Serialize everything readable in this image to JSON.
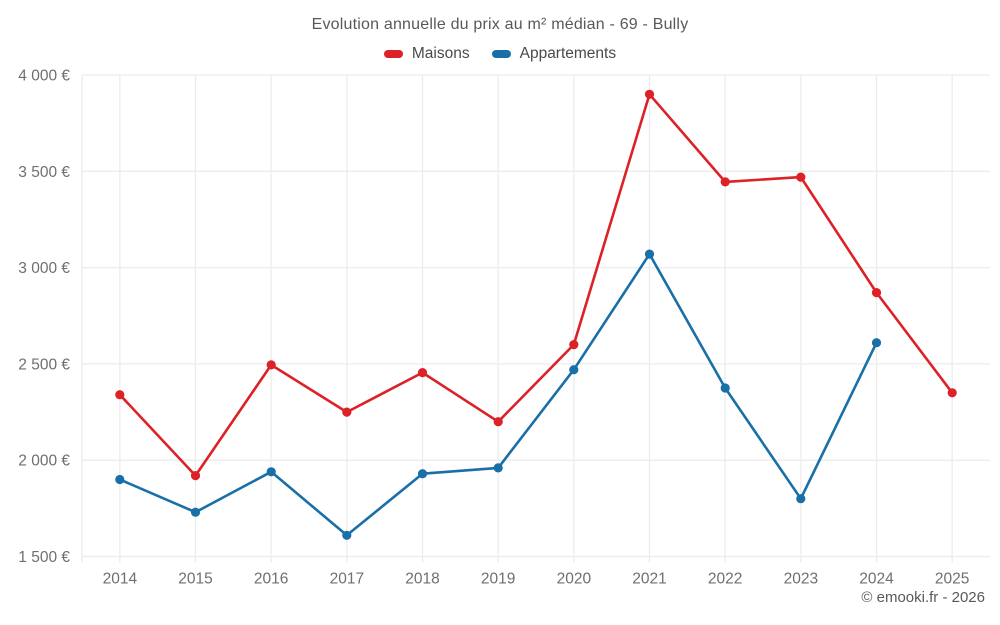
{
  "title": "Evolution annuelle du prix au m² médian - 69 - Bully",
  "footer": "© emooki.fr - 2026",
  "styles": {
    "grid_color": "#ececec",
    "axis_text_color": "#6f6f6f",
    "title_color": "#595959",
    "background": "#ffffff"
  },
  "chart_data": {
    "type": "line",
    "title": "Evolution annuelle du prix au m² médian - 69 - Bully",
    "categories": [
      "2014",
      "2015",
      "2016",
      "2017",
      "2018",
      "2019",
      "2020",
      "2021",
      "2022",
      "2023",
      "2024",
      "2025"
    ],
    "series": [
      {
        "name": "Maisons",
        "color": "#dc2127",
        "values": [
          2340,
          1920,
          2495,
          2250,
          2455,
          2200,
          2600,
          3900,
          3445,
          3470,
          2870,
          2350
        ]
      },
      {
        "name": "Appartements",
        "color": "#196fa7",
        "values": [
          1900,
          1730,
          1940,
          1610,
          1930,
          1960,
          2470,
          3070,
          2375,
          1800,
          2610,
          null
        ]
      }
    ],
    "xlabel": "",
    "ylabel": "",
    "ylim": [
      1500,
      4000
    ],
    "yticks": [
      {
        "value": 1500,
        "label": "1 500 €"
      },
      {
        "value": 2000,
        "label": "2 000 €"
      },
      {
        "value": 2500,
        "label": "2 500 €"
      },
      {
        "value": 3000,
        "label": "3 000 €"
      },
      {
        "value": 3500,
        "label": "3 500 €"
      },
      {
        "value": 4000,
        "label": "4 000 €"
      }
    ],
    "grid": true,
    "legend_position": "top"
  }
}
